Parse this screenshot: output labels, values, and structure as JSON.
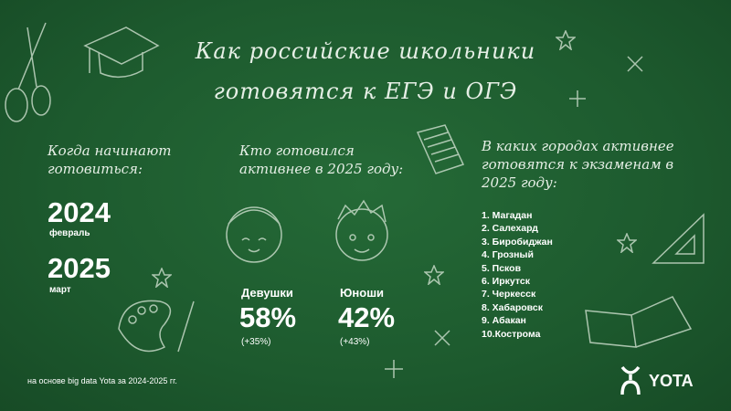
{
  "title": {
    "line1": "Как российские школьники",
    "line2": "готовятся к ЕГЭ и ОГЭ"
  },
  "when": {
    "heading": "Когда начинают готовиться:",
    "items": [
      {
        "year": "2024",
        "month": "февраль"
      },
      {
        "year": "2025",
        "month": "март"
      }
    ]
  },
  "who": {
    "heading": "Кто готовился активнее в 2025 году:",
    "groups": [
      {
        "label": "Девушки",
        "percent": "58%",
        "change": "(+35%)"
      },
      {
        "label": "Юноши",
        "percent": "42%",
        "change": "(+43%)"
      }
    ]
  },
  "cities": {
    "heading": "В каких городах активнее готовятся к экзаменам в 2025 году:",
    "items": [
      "1. Магадан",
      "2. Салехард",
      "3. Биробиджан",
      "4. Грозный",
      "5. Псков",
      "6. Иркутск",
      "7. Черкесск",
      "8. Хабаровск",
      "9. Абакан",
      "10.Кострома"
    ]
  },
  "footer": "на основе big data Yota за 2024-2025 гг.",
  "brand": {
    "name": "YOTA"
  },
  "colors": {
    "background": "#1e5a2f",
    "chalk": "#ffffff"
  }
}
